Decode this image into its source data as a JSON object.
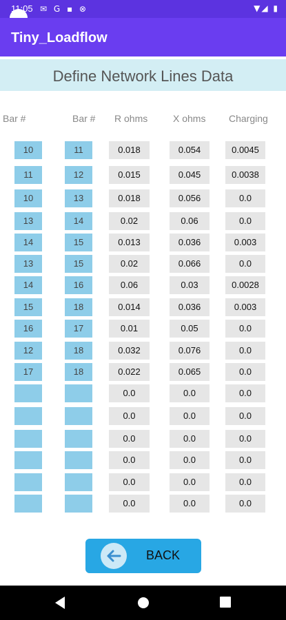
{
  "status_bar": {
    "time": "11:05",
    "left_icons": "✉ G ▪ ⊗",
    "right_icons": "▼◢ ▮"
  },
  "app": {
    "title": "Tiny_Loadflow"
  },
  "banner": {
    "title": "Define Network Lines Data"
  },
  "table": {
    "headers": [
      "Bar #",
      "Bar #",
      "R ohms",
      "X ohms",
      "Charging"
    ],
    "rows": [
      [
        "10",
        "11",
        "0.018",
        "0.054",
        "0.0045"
      ],
      [
        "11",
        "12",
        "0.015",
        "0.045",
        "0.0038"
      ],
      [
        "10",
        "13",
        "0.018",
        "0.056",
        "0.0"
      ],
      [
        "13",
        "14",
        "0.02",
        "0.06",
        "0.0"
      ],
      [
        "14",
        "15",
        "0.013",
        "0.036",
        "0.003"
      ],
      [
        "13",
        "15",
        "0.02",
        "0.066",
        "0.0"
      ],
      [
        "14",
        "16",
        "0.06",
        "0.03",
        "0.0028"
      ],
      [
        "15",
        "18",
        "0.014",
        "0.036",
        "0.003"
      ],
      [
        "16",
        "17",
        "0.01",
        "0.05",
        "0.0"
      ],
      [
        "12",
        "18",
        "0.032",
        "0.076",
        "0.0"
      ],
      [
        "17",
        "18",
        "0.022",
        "0.065",
        "0.0"
      ],
      [
        "",
        "",
        "0.0",
        "0.0",
        "0.0"
      ],
      [
        "",
        "",
        "0.0",
        "0.0",
        "0.0"
      ],
      [
        "",
        "",
        "0.0",
        "0.0",
        "0.0"
      ],
      [
        "",
        "",
        "0.0",
        "0.0",
        "0.0"
      ],
      [
        "",
        "",
        "0.0",
        "0.0",
        "0.0"
      ],
      [
        "",
        "",
        "0.0",
        "0.0",
        "0.0"
      ]
    ]
  },
  "buttons": {
    "back": "BACK"
  },
  "colors": {
    "status_bar": "#5c33e0",
    "app_bar": "#6a3df0",
    "banner": "#d3eef4",
    "bar_cell": "#8ecde9",
    "value_cell": "#e6e6e6",
    "back_button": "#28a7e4"
  },
  "icons": {
    "back": "arrow-left-icon",
    "nav_back": "triangle-back-icon",
    "nav_home": "circle-home-icon",
    "nav_recents": "square-recents-icon"
  }
}
